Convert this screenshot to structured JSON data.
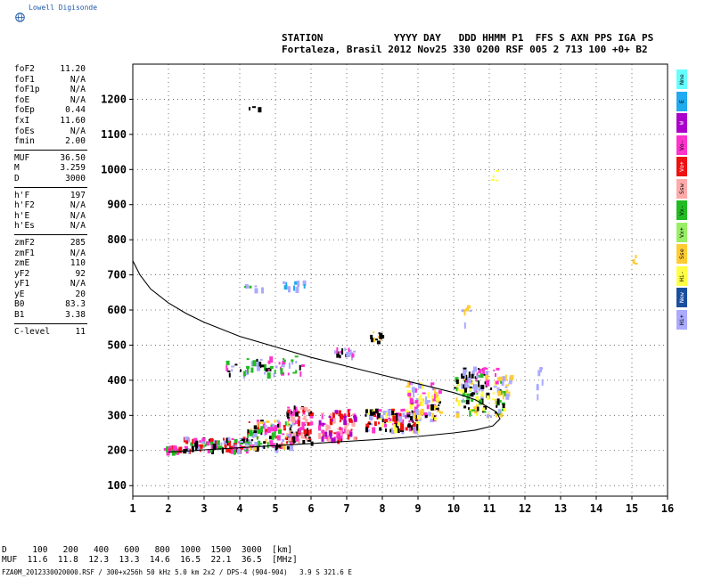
{
  "brand": {
    "name": "Lowell Digisonde"
  },
  "header": {
    "line1": "STATION            YYYY DAY   DDD HHMM P1  FFS S AXN PPS IGA PS",
    "line2": "Fortaleza, Brasil 2012 Nov25 330 0200 RSF 005 2 713 100 +0+ B2"
  },
  "params": {
    "group1": [
      {
        "label": "foF2",
        "value": "11.20"
      },
      {
        "label": "foF1",
        "value": "N/A"
      },
      {
        "label": "foF1p",
        "value": "N/A"
      },
      {
        "label": "foE",
        "value": "N/A"
      },
      {
        "label": "foEp",
        "value": "0.44"
      },
      {
        "label": "fxI",
        "value": "11.60"
      },
      {
        "label": "foEs",
        "value": "N/A"
      },
      {
        "label": "fmin",
        "value": "2.00"
      }
    ],
    "group2": [
      {
        "label": "MUF",
        "value": "36.50"
      },
      {
        "label": "M",
        "value": "3.259"
      },
      {
        "label": "D",
        "value": "3000"
      }
    ],
    "group3": [
      {
        "label": "h'F",
        "value": "197"
      },
      {
        "label": "h'F2",
        "value": "N/A"
      },
      {
        "label": "h'E",
        "value": "N/A"
      },
      {
        "label": "h'Es",
        "value": "N/A"
      }
    ],
    "group4": [
      {
        "label": "zmF2",
        "value": "285"
      },
      {
        "label": "zmF1",
        "value": "N/A"
      },
      {
        "label": "zmE",
        "value": "110"
      },
      {
        "label": "yF2",
        "value": "92"
      },
      {
        "label": "yF1",
        "value": "N/A"
      },
      {
        "label": "yE",
        "value": "20"
      },
      {
        "label": "B0",
        "value": "83.3"
      },
      {
        "label": "B1",
        "value": "3.38"
      }
    ],
    "group5": [
      {
        "label": "C-level",
        "value": "11"
      }
    ]
  },
  "legend": [
    {
      "label": "Nne",
      "color": "#66ffff"
    },
    {
      "label": "E",
      "color": "#22aaee"
    },
    {
      "label": "W",
      "color": "#aa00cc"
    },
    {
      "label": "Vo-",
      "color": "#ff33cc"
    },
    {
      "label": "Vo+",
      "color": "#ee1111"
    },
    {
      "label": "Ssw",
      "color": "#ffaaaa"
    },
    {
      "label": "Vx-",
      "color": "#22bb22"
    },
    {
      "label": "Vx+",
      "color": "#99ee66"
    },
    {
      "label": "Sse",
      "color": "#ffcc33"
    },
    {
      "label": "Hi-",
      "color": "#ffff44"
    },
    {
      "label": "New",
      "color": "#1a4fa0"
    },
    {
      "label": "Hi+",
      "color": "#aaaaff"
    }
  ],
  "footer": {
    "line1": "D     100   200   400   600   800  1000  1500  3000  [km]",
    "line2": "MUF  11.6  11.8  12.3  13.3  14.6  16.5  22.1  36.5  [MHz]",
    "filename": "FZA0M_2012330020000.RSF / 300+x256h 50 kHz 5.0 km 2x2 / DPS-4 (904-904)   3.9 S 321.6 E"
  },
  "chart_data": {
    "type": "scatter",
    "title": "",
    "xlabel": "",
    "ylabel": "",
    "xlim": [
      1,
      16
    ],
    "ylim": [
      70,
      1300
    ],
    "x_ticks": [
      1,
      2,
      3,
      4,
      5,
      6,
      7,
      8,
      9,
      10,
      11,
      12,
      13,
      14,
      15,
      16
    ],
    "y_ticks": [
      100,
      200,
      300,
      400,
      500,
      600,
      700,
      800,
      900,
      1000,
      1100,
      1200
    ],
    "grid": true,
    "trace_curve": {
      "name": "",
      "points": [
        [
          1.0,
          740
        ],
        [
          1.2,
          700
        ],
        [
          1.5,
          660
        ],
        [
          2.0,
          620
        ],
        [
          2.5,
          590
        ],
        [
          3.0,
          565
        ],
        [
          4.0,
          525
        ],
        [
          5.0,
          495
        ],
        [
          6.0,
          465
        ],
        [
          7.0,
          440
        ],
        [
          8.0,
          415
        ],
        [
          9.0,
          390
        ],
        [
          10.0,
          365
        ],
        [
          10.6,
          345
        ],
        [
          11.2,
          310
        ],
        [
          11.3,
          290
        ],
        [
          11.1,
          270
        ],
        [
          10.6,
          258
        ],
        [
          10.0,
          250
        ],
        [
          9.0,
          240
        ],
        [
          8.0,
          232
        ],
        [
          7.0,
          226
        ],
        [
          6.0,
          220
        ],
        [
          5.0,
          214
        ],
        [
          4.0,
          208
        ],
        [
          3.0,
          202
        ],
        [
          2.5,
          198
        ],
        [
          2.0,
          196
        ]
      ]
    },
    "echo_clusters": [
      {
        "x": [
          1.8,
          2.4
        ],
        "y": [
          200,
          215
        ],
        "colors": [
          "#ee1111",
          "#22bb22",
          "#ff33cc"
        ],
        "density": 30
      },
      {
        "x": [
          2.4,
          4.2
        ],
        "y": [
          200,
          240
        ],
        "colors": [
          "#ee1111",
          "#ff33cc",
          "#22bb22",
          "#aaaaff",
          "#000000"
        ],
        "density": 110
      },
      {
        "x": [
          4.2,
          5.5
        ],
        "y": [
          210,
          290
        ],
        "colors": [
          "#ee1111",
          "#ff33cc",
          "#22bb22",
          "#aaaaff",
          "#ffcc33",
          "#000000"
        ],
        "density": 120
      },
      {
        "x": [
          5.3,
          6.0
        ],
        "y": [
          225,
          330
        ],
        "colors": [
          "#ee1111",
          "#ff33cc",
          "#ffaaaa",
          "#000000"
        ],
        "density": 90
      },
      {
        "x": [
          6.2,
          7.2
        ],
        "y": [
          230,
          320
        ],
        "colors": [
          "#ee1111",
          "#ff33cc",
          "#ffaaaa",
          "#aa00cc"
        ],
        "density": 90
      },
      {
        "x": [
          7.5,
          9.0
        ],
        "y": [
          260,
          320
        ],
        "colors": [
          "#ffff44",
          "#ee1111",
          "#ff33cc",
          "#aaaaff",
          "#000000"
        ],
        "density": 120
      },
      {
        "x": [
          8.6,
          9.6
        ],
        "y": [
          290,
          400
        ],
        "colors": [
          "#ffff44",
          "#ffcc33",
          "#ff33cc",
          "#aaaaff",
          "#000000"
        ],
        "density": 90
      },
      {
        "x": [
          10.0,
          11.4
        ],
        "y": [
          300,
          420
        ],
        "colors": [
          "#ffff44",
          "#aaaaff",
          "#ffcc33",
          "#000000",
          "#22bb22"
        ],
        "density": 110
      },
      {
        "x": [
          10.2,
          11.2
        ],
        "y": [
          380,
          440
        ],
        "colors": [
          "#000000",
          "#aaaaff",
          "#ff33cc"
        ],
        "density": 45
      },
      {
        "x": [
          11.4,
          11.6
        ],
        "y": [
          360,
          420
        ],
        "colors": [
          "#ffcc33",
          "#aaaaff"
        ],
        "density": 10
      },
      {
        "x": [
          3.6,
          5.8
        ],
        "y": [
          420,
          470
        ],
        "colors": [
          "#aaaaff",
          "#ff33cc",
          "#000000",
          "#22bb22"
        ],
        "density": 60
      },
      {
        "x": [
          6.6,
          7.2
        ],
        "y": [
          470,
          495
        ],
        "colors": [
          "#aaaaff",
          "#000000",
          "#ff33cc"
        ],
        "density": 18
      },
      {
        "x": [
          7.6,
          8.0
        ],
        "y": [
          510,
          540
        ],
        "colors": [
          "#000000",
          "#ffcc33"
        ],
        "density": 12
      },
      {
        "x": [
          4.0,
          4.6
        ],
        "y": [
          650,
          680
        ],
        "colors": [
          "#aaaaff",
          "#22bb22"
        ],
        "density": 6
      },
      {
        "x": [
          5.2,
          5.8
        ],
        "y": [
          665,
          685
        ],
        "colors": [
          "#aaaaff",
          "#22aaee"
        ],
        "density": 10
      },
      {
        "x": [
          10.2,
          10.5
        ],
        "y": [
          560,
          620
        ],
        "colors": [
          "#ffcc33",
          "#aaaaff"
        ],
        "density": 6
      },
      {
        "x": [
          12.3,
          12.5
        ],
        "y": [
          360,
          450
        ],
        "colors": [
          "#aaaaff"
        ],
        "density": 6
      },
      {
        "x": [
          11.0,
          11.2
        ],
        "y": [
          970,
          1000
        ],
        "colors": [
          "#ffff44"
        ],
        "density": 4
      },
      {
        "x": [
          15.0,
          15.1
        ],
        "y": [
          720,
          760
        ],
        "colors": [
          "#ffcc33"
        ],
        "density": 3
      },
      {
        "x": [
          4.1,
          4.6
        ],
        "y": [
          1170,
          1185
        ],
        "colors": [
          "#aaaaff",
          "#000000"
        ],
        "density": 3
      }
    ]
  }
}
